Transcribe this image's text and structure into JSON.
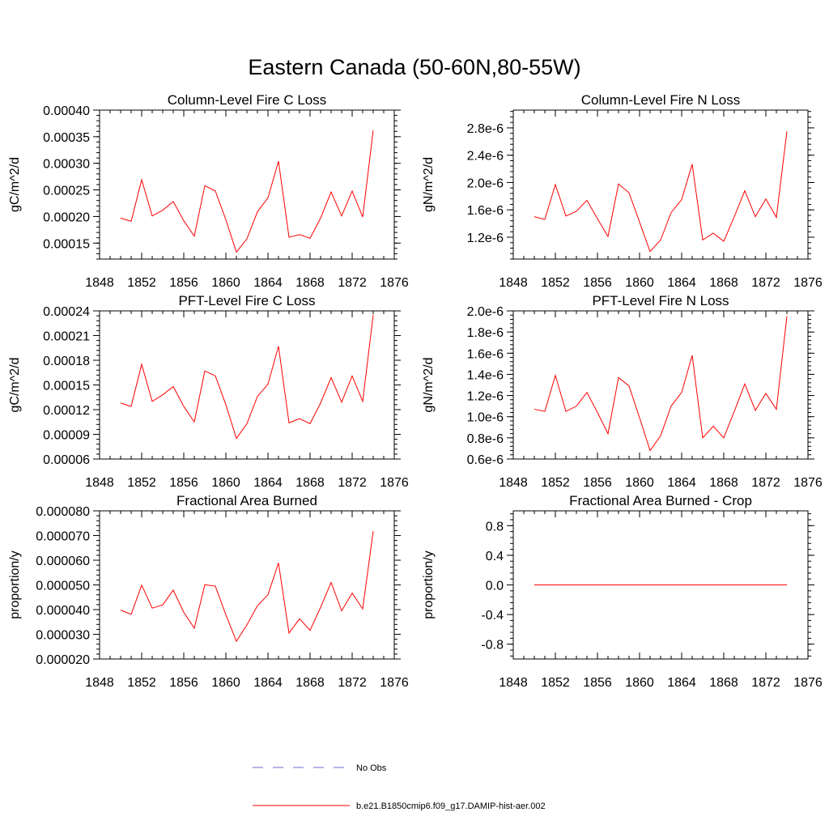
{
  "title": "Eastern Canada (50-60N,80-55W)",
  "legend": [
    {
      "label": "No Obs",
      "color": "#6b6bd6",
      "dash": true
    },
    {
      "label": "b.e21.B1850cmip6.f09_g17.DAMIP-hist-aer.002",
      "color": "#ff0000",
      "dash": false
    }
  ],
  "chart_data": [
    {
      "type": "line",
      "title": "Column-Level Fire C Loss",
      "ylabel": "gC/m^2/d",
      "xlim": [
        1848,
        1876
      ],
      "xticks": [
        1848,
        1852,
        1856,
        1860,
        1864,
        1868,
        1872,
        1876
      ],
      "ylim": [
        0.00012,
        0.0004
      ],
      "yticks": [
        "0.00015",
        "0.00020",
        "0.00025",
        "0.00030",
        "0.00035",
        "0.00040"
      ],
      "color": "#ff0000",
      "x": [
        1850,
        1851,
        1852,
        1853,
        1854,
        1855,
        1856,
        1857,
        1858,
        1859,
        1860,
        1861,
        1862,
        1863,
        1864,
        1865,
        1866,
        1867,
        1868,
        1869,
        1870,
        1871,
        1872,
        1873,
        1874
      ],
      "values": [
        0.000197,
        0.000191,
        0.000269,
        0.000201,
        0.000212,
        0.000228,
        0.000192,
        0.000163,
        0.000258,
        0.000248,
        0.000194,
        0.000133,
        0.000158,
        0.000209,
        0.000235,
        0.000304,
        0.000161,
        0.000166,
        0.000159,
        0.000197,
        0.000246,
        0.000201,
        0.000248,
        0.000199,
        0.000362
      ]
    },
    {
      "type": "line",
      "title": "Column-Level Fire N Loss",
      "ylabel": "gN/m^2/d",
      "xlim": [
        1848,
        1876
      ],
      "xticks": [
        1848,
        1852,
        1856,
        1860,
        1864,
        1868,
        1872,
        1876
      ],
      "ylim": [
        8.8e-07,
        3.06e-06
      ],
      "yticks": [
        "1.2e-6",
        "1.6e-6",
        "2.0e-6",
        "2.4e-6",
        "2.8e-6"
      ],
      "color": "#ff0000",
      "x": [
        1850,
        1851,
        1852,
        1853,
        1854,
        1855,
        1856,
        1857,
        1858,
        1859,
        1860,
        1861,
        1862,
        1863,
        1864,
        1865,
        1866,
        1867,
        1868,
        1869,
        1870,
        1871,
        1872,
        1873,
        1874
      ],
      "values": [
        1.5e-06,
        1.46e-06,
        1.97e-06,
        1.51e-06,
        1.58e-06,
        1.74e-06,
        1.47e-06,
        1.21e-06,
        1.98e-06,
        1.85e-06,
        1.42e-06,
        9.9e-07,
        1.16e-06,
        1.56e-06,
        1.75e-06,
        2.27e-06,
        1.16e-06,
        1.26e-06,
        1.14e-06,
        1.5e-06,
        1.88e-06,
        1.5e-06,
        1.76e-06,
        1.49e-06,
        2.75e-06
      ]
    },
    {
      "type": "line",
      "title": "PFT-Level Fire C Loss",
      "ylabel": "gC/m^2/d",
      "xlim": [
        1848,
        1876
      ],
      "xticks": [
        1848,
        1852,
        1856,
        1860,
        1864,
        1868,
        1872,
        1876
      ],
      "ylim": [
        6e-05,
        0.00024
      ],
      "yticks": [
        "0.00006",
        "0.00009",
        "0.00012",
        "0.00015",
        "0.00018",
        "0.00021",
        "0.00024"
      ],
      "color": "#ff0000",
      "x": [
        1850,
        1851,
        1852,
        1853,
        1854,
        1855,
        1856,
        1857,
        1858,
        1859,
        1860,
        1861,
        1862,
        1863,
        1864,
        1865,
        1866,
        1867,
        1868,
        1869,
        1870,
        1871,
        1872,
        1873,
        1874
      ],
      "values": [
        0.000128,
        0.000124,
        0.000175,
        0.00013,
        0.000138,
        0.000148,
        0.000124,
        0.000105,
        0.000167,
        0.000161,
        0.000126,
        8.5e-05,
        0.000103,
        0.000136,
        0.000151,
        0.000197,
        0.000104,
        0.000109,
        0.000103,
        0.000128,
        0.000159,
        0.000129,
        0.000161,
        0.00013,
        0.000235
      ]
    },
    {
      "type": "line",
      "title": "PFT-Level Fire N Loss",
      "ylabel": "gN/m^2/d",
      "xlim": [
        1848,
        1876
      ],
      "xticks": [
        1848,
        1852,
        1856,
        1860,
        1864,
        1868,
        1872,
        1876
      ],
      "ylim": [
        6e-07,
        2e-06
      ],
      "yticks": [
        "0.6e-6",
        "0.8e-6",
        "1.0e-6",
        "1.2e-6",
        "1.4e-6",
        "1.6e-6",
        "1.8e-6",
        "2.0e-6"
      ],
      "color": "#ff0000",
      "x": [
        1850,
        1851,
        1852,
        1853,
        1854,
        1855,
        1856,
        1857,
        1858,
        1859,
        1860,
        1861,
        1862,
        1863,
        1864,
        1865,
        1866,
        1867,
        1868,
        1869,
        1870,
        1871,
        1872,
        1873,
        1874
      ],
      "values": [
        1.07e-06,
        1.05e-06,
        1.39e-06,
        1.05e-06,
        1.1e-06,
        1.23e-06,
        1.04e-06,
        8.4e-07,
        1.37e-06,
        1.29e-06,
        9.9e-07,
        6.8e-07,
        8.2e-07,
        1.1e-06,
        1.23e-06,
        1.58e-06,
        8e-07,
        9.1e-07,
        8e-07,
        1.05e-06,
        1.31e-06,
        1.06e-06,
        1.22e-06,
        1.07e-06,
        1.95e-06
      ]
    },
    {
      "type": "line",
      "title": "Fractional Area Burned",
      "ylabel": "proportion/y",
      "xlim": [
        1848,
        1876
      ],
      "xticks": [
        1848,
        1852,
        1856,
        1860,
        1864,
        1868,
        1872,
        1876
      ],
      "ylim": [
        2e-05,
        8e-05
      ],
      "yticks": [
        "0.000020",
        "0.000030",
        "0.000040",
        "0.000050",
        "0.000060",
        "0.000070",
        "0.000080"
      ],
      "color": "#ff0000",
      "x": [
        1850,
        1851,
        1852,
        1853,
        1854,
        1855,
        1856,
        1857,
        1858,
        1859,
        1860,
        1861,
        1862,
        1863,
        1864,
        1865,
        1866,
        1867,
        1868,
        1869,
        1870,
        1871,
        1872,
        1873,
        1874
      ],
      "values": [
        3.98e-05,
        3.81e-05,
        4.99e-05,
        4.06e-05,
        4.19e-05,
        4.79e-05,
        3.89e-05,
        3.25e-05,
        5.01e-05,
        4.95e-05,
        3.79e-05,
        2.72e-05,
        3.38e-05,
        4.16e-05,
        4.6e-05,
        5.89e-05,
        3.05e-05,
        3.63e-05,
        3.16e-05,
        4.09e-05,
        5.1e-05,
        3.95e-05,
        4.67e-05,
        4.03e-05,
        7.18e-05
      ]
    },
    {
      "type": "line",
      "title": "Fractional Area Burned - Crop",
      "ylabel": "proportion/y",
      "xlim": [
        1848,
        1876
      ],
      "xticks": [
        1848,
        1852,
        1856,
        1860,
        1864,
        1868,
        1872,
        1876
      ],
      "ylim": [
        -1.0,
        1.0
      ],
      "yticks": [
        "-0.8",
        "-0.4",
        "0.0",
        "0.4",
        "0.8"
      ],
      "color": "#ff0000",
      "x": [
        1850,
        1874
      ],
      "values": [
        0.0,
        0.0
      ]
    }
  ]
}
